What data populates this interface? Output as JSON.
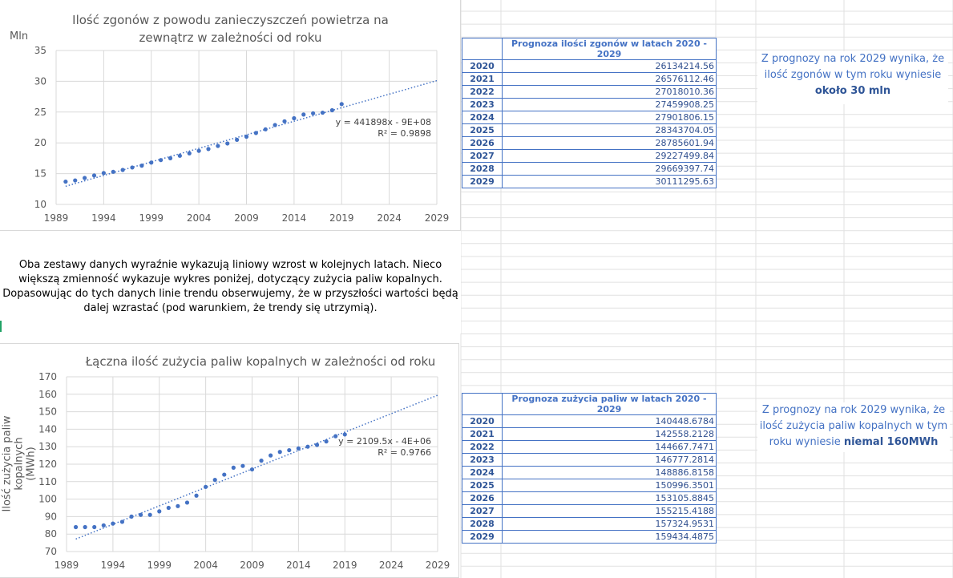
{
  "chart_data": [
    {
      "type": "scatter",
      "title_line1": "Ilość zgonów z powodu zanieczyszczeń powietrza na",
      "title_line2": "zewnątrz w zależności od roku",
      "ylabel": "Mln",
      "xlim": [
        1989,
        2029
      ],
      "ylim": [
        10,
        35
      ],
      "xticks": [
        1989,
        1994,
        1999,
        2004,
        2009,
        2014,
        2019,
        2024,
        2029
      ],
      "yticks": [
        10,
        15,
        20,
        25,
        30,
        35
      ],
      "grid": true,
      "points": {
        "x": [
          1990,
          1991,
          1992,
          1993,
          1994,
          1995,
          1996,
          1997,
          1998,
          1999,
          2000,
          2001,
          2002,
          2003,
          2004,
          2005,
          2006,
          2007,
          2008,
          2009,
          2010,
          2011,
          2012,
          2013,
          2014,
          2015,
          2016,
          2017,
          2018,
          2019
        ],
        "y": [
          13.7,
          13.9,
          14.3,
          14.7,
          15.1,
          15.3,
          15.6,
          16.0,
          16.3,
          16.8,
          17.2,
          17.5,
          17.9,
          18.3,
          18.7,
          19.0,
          19.5,
          19.9,
          20.5,
          21.0,
          21.6,
          22.2,
          22.9,
          23.5,
          24.0,
          24.6,
          24.8,
          24.9,
          25.3,
          26.3
        ]
      },
      "trendline": {
        "slope": 0.441898,
        "y1990": 12.95,
        "y2029": 30.11
      },
      "trend_equation": "y = 441898x - 9E+08",
      "r_squared": "R² = 0.9898",
      "color": "#4472c4"
    },
    {
      "type": "scatter",
      "title": "Łączna ilość zużycia paliw kopalnych w zależności od roku",
      "ylabel_line1": "Ilość zużycia paliw kopalnych",
      "ylabel_line2": "(MWh)",
      "xlim": [
        1989,
        2029
      ],
      "ylim": [
        70,
        170
      ],
      "xticks": [
        1989,
        1994,
        1999,
        2004,
        2009,
        2014,
        2019,
        2024,
        2029
      ],
      "yticks": [
        70,
        80,
        90,
        100,
        110,
        120,
        130,
        140,
        150,
        160,
        170
      ],
      "grid": true,
      "points": {
        "x": [
          1990,
          1991,
          1992,
          1993,
          1994,
          1995,
          1996,
          1997,
          1998,
          1999,
          2000,
          2001,
          2002,
          2003,
          2004,
          2005,
          2006,
          2007,
          2008,
          2009,
          2010,
          2011,
          2012,
          2013,
          2014,
          2015,
          2016,
          2017,
          2018,
          2019
        ],
        "y": [
          84,
          84,
          84,
          85,
          86,
          87,
          90,
          91,
          91,
          93,
          95,
          96,
          98,
          102,
          107,
          111,
          114,
          118,
          119,
          117,
          122,
          125,
          127,
          128,
          129,
          130,
          131,
          133,
          136,
          137
        ]
      },
      "trendline": {
        "slope": 2.1095,
        "y1990": 77.15,
        "y2029": 159.43
      },
      "trend_equation": "y = 2109.5x - 4E+06",
      "r_squared": "R² = 0.9766",
      "color": "#4472c4"
    }
  ],
  "analysis_lines": [
    "Oba zestawy danych wyraźnie wykazują liniowy wzrost w kolejnych latach. Nieco",
    "większą zmienność wykazuje wykres poniżej, dotyczący zużycia paliw kopalnych.",
    "Dopasowując do tych danych linie trendu obserwujemy, że w przyszłości wartości będą",
    "dalej wzrastać (pod warunkiem, że trendy się utrzymią)."
  ],
  "table1": {
    "header": "Prognoza ilości zgonów w latach 2020 - 2029",
    "rows": [
      {
        "year": "2020",
        "value": "26134214.56"
      },
      {
        "year": "2021",
        "value": "26576112.46"
      },
      {
        "year": "2022",
        "value": "27018010.36"
      },
      {
        "year": "2023",
        "value": "27459908.25"
      },
      {
        "year": "2024",
        "value": "27901806.15"
      },
      {
        "year": "2025",
        "value": "28343704.05"
      },
      {
        "year": "2026",
        "value": "28785601.94"
      },
      {
        "year": "2027",
        "value": "29227499.84"
      },
      {
        "year": "2028",
        "value": "29669397.74"
      },
      {
        "year": "2029",
        "value": "30111295.63"
      }
    ]
  },
  "table2": {
    "header": "Prognoza zużycia paliw w latach 2020 - 2029",
    "rows": [
      {
        "year": "2020",
        "value": "140448.6784"
      },
      {
        "year": "2021",
        "value": "142558.2128"
      },
      {
        "year": "2022",
        "value": "144667.7471"
      },
      {
        "year": "2023",
        "value": "146777.2814"
      },
      {
        "year": "2024",
        "value": "148886.8158"
      },
      {
        "year": "2025",
        "value": "150996.3501"
      },
      {
        "year": "2026",
        "value": "153105.8845"
      },
      {
        "year": "2027",
        "value": "155215.4188"
      },
      {
        "year": "2028",
        "value": "157324.9531"
      },
      {
        "year": "2029",
        "value": "159434.4875"
      }
    ]
  },
  "note1": {
    "line1": "Z prognozy na rok 2029 wynika, że",
    "line2": "ilość zgonów w tym roku wyniesie",
    "bold": "około 30 mln"
  },
  "note2": {
    "line1": "Z prognozy na rok 2029 wynika, że",
    "line2": "ilość zużycia paliw kopalnych w tym",
    "line3_prefix": "roku wyniesie ",
    "bold": "niemal 160MWh"
  }
}
